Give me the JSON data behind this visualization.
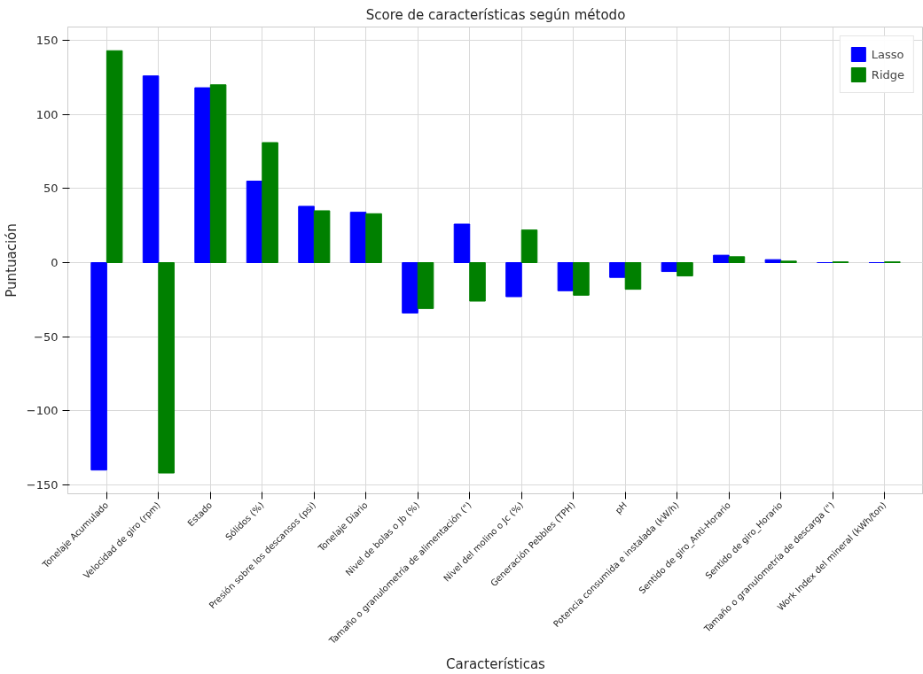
{
  "chart_data": {
    "type": "bar",
    "title": "Score de características según método",
    "xlabel": "Características",
    "ylabel": "Puntuación",
    "categories": [
      "Tonelaje Acumulado",
      "Velocidad de giro (rpm)",
      "Estado",
      "Sólidos (%)",
      "Presión sobre los descansos (psi)",
      "Tonelaje Diario",
      "Nivel de bolas o Jb (%)",
      "Tamaño o granulometría de alimentación (\")",
      "Nivel del molino o Jc (%)",
      "Generación Pebbles (TPH)",
      "pH",
      "Potencia consumida e instalada (kW/h)",
      "Sentido de giro_Anti-Horario",
      "Sentido de giro_Horario",
      "Tamaño o granulometría de descarga (\")",
      "Work Index del mineral (kWh/ton)"
    ],
    "series": [
      {
        "name": "Lasso",
        "color": "#0000ff",
        "values": [
          -140,
          126,
          118,
          55,
          38,
          34,
          -34,
          26,
          -23,
          -19,
          -10,
          -6,
          5,
          2,
          0,
          0
        ]
      },
      {
        "name": "Ridge",
        "color": "#008000",
        "values": [
          143,
          -142,
          120,
          81,
          35,
          33,
          -31,
          -26,
          22,
          -22,
          -18,
          -9,
          4,
          1,
          0.5,
          0.5
        ]
      }
    ],
    "ylim": [
      -156,
      159
    ],
    "yticks": [
      {
        "value": -150,
        "label": "−150"
      },
      {
        "value": -100,
        "label": "−100"
      },
      {
        "value": -50,
        "label": "−50"
      },
      0,
      50,
      100,
      150
    ],
    "grid": true,
    "legend": "top right"
  }
}
